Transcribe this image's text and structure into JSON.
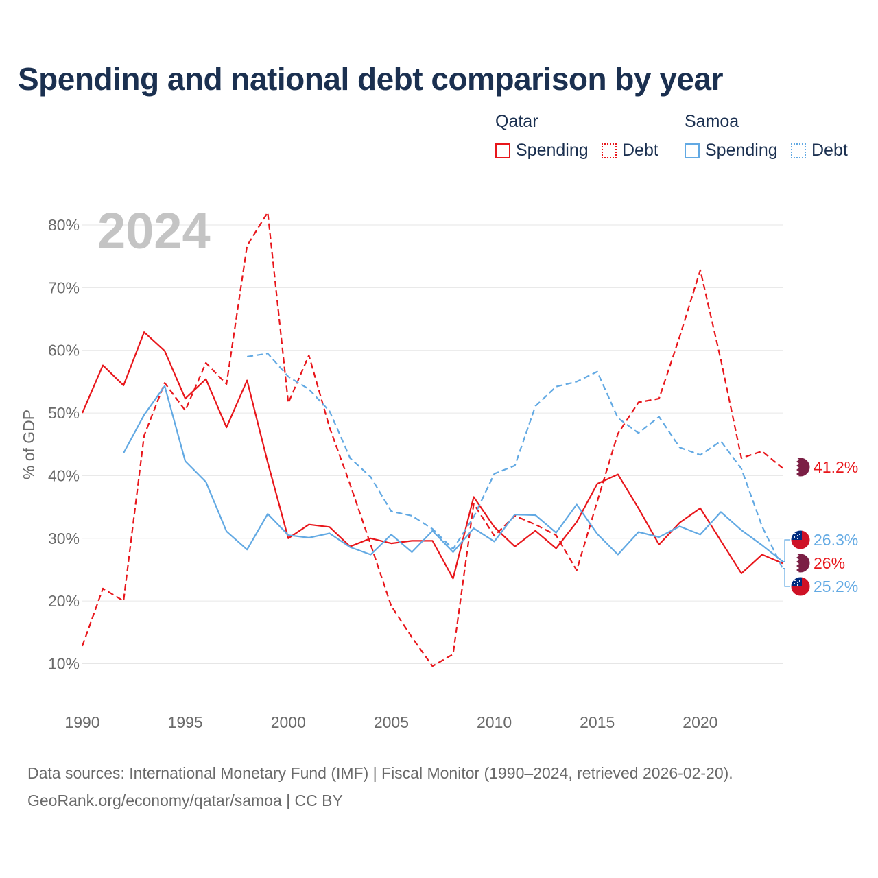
{
  "title": "Spending and national debt comparison by year",
  "legend": {
    "groups": [
      {
        "country": "Qatar",
        "color": "#e8161b",
        "items": [
          "Spending",
          "Debt"
        ]
      },
      {
        "country": "Samoa",
        "color": "#62a9e3",
        "items": [
          "Spending",
          "Debt"
        ]
      }
    ]
  },
  "year_watermark": "2024",
  "source": {
    "line1": "Data sources: International Monetary Fund (IMF) | Fiscal Monitor (1990–2024, retrieved 2026-02-20).",
    "line2": "GeoRank.org/economy/qatar/samoa | CC BY"
  },
  "colors": {
    "qatar": "#e8161b",
    "samoa": "#62a9e3",
    "qatar_flag": "#7b1f45",
    "samoa_flag": "#ce1126",
    "samoa_canton": "#002b7f"
  },
  "chart_data": {
    "type": "line",
    "ylabel": "% of GDP",
    "xlim": [
      1990,
      2024
    ],
    "ylim": [
      5,
      85
    ],
    "x_ticks": [
      1990,
      1995,
      2000,
      2005,
      2010,
      2015,
      2020
    ],
    "y_ticks": [
      10,
      20,
      30,
      40,
      50,
      60,
      70,
      80
    ],
    "y_tick_labels": [
      "10%",
      "20%",
      "30%",
      "40%",
      "50%",
      "60%",
      "70%",
      "80%"
    ],
    "series": [
      {
        "name": "Qatar Spending",
        "country": "Qatar",
        "metric": "Spending",
        "style": "solid",
        "x": [
          1990,
          1991,
          1992,
          1993,
          1994,
          1995,
          1996,
          1997,
          1998,
          1999,
          2000,
          2001,
          2002,
          2003,
          2004,
          2005,
          2006,
          2007,
          2008,
          2009,
          2010,
          2011,
          2012,
          2013,
          2014,
          2015,
          2016,
          2017,
          2018,
          2019,
          2020,
          2021,
          2022,
          2023,
          2024
        ],
        "values": [
          50.0,
          57.6,
          54.4,
          62.9,
          59.9,
          52.3,
          55.4,
          47.7,
          55.2,
          42.1,
          30.0,
          32.2,
          31.8,
          28.7,
          30.0,
          29.2,
          29.6,
          29.6,
          23.6,
          36.6,
          31.8,
          28.7,
          31.2,
          28.4,
          32.6,
          38.7,
          40.2,
          34.8,
          29.0,
          32.5,
          34.8,
          29.6,
          24.4,
          27.4,
          26.0
        ],
        "end_label": "26%"
      },
      {
        "name": "Qatar Debt",
        "country": "Qatar",
        "metric": "Debt",
        "style": "dashed",
        "x": [
          1990,
          1991,
          1992,
          1993,
          1994,
          1995,
          1996,
          1997,
          1998,
          1999,
          2000,
          2001,
          2002,
          2003,
          2004,
          2005,
          2006,
          2007,
          2008,
          2009,
          2010,
          2011,
          2012,
          2013,
          2014,
          2015,
          2016,
          2017,
          2018,
          2019,
          2020,
          2021,
          2022,
          2023,
          2024
        ],
        "values": [
          12.8,
          22.0,
          20.0,
          46.4,
          54.8,
          50.4,
          58.0,
          54.6,
          76.7,
          82.0,
          51.6,
          59.2,
          47.7,
          38.6,
          29.0,
          19.2,
          14.2,
          9.6,
          11.5,
          35.5,
          30.4,
          33.6,
          32.2,
          30.5,
          24.9,
          35.9,
          46.7,
          51.7,
          52.3,
          62.2,
          72.8,
          58.5,
          42.8,
          43.9,
          41.2
        ],
        "end_label": "41.2%"
      },
      {
        "name": "Samoa Spending",
        "country": "Samoa",
        "metric": "Spending",
        "style": "solid",
        "x": [
          1992,
          1993,
          1994,
          1995,
          1996,
          1997,
          1998,
          1999,
          2000,
          2001,
          2002,
          2003,
          2004,
          2005,
          2006,
          2007,
          2008,
          2009,
          2010,
          2011,
          2012,
          2013,
          2014,
          2015,
          2016,
          2017,
          2018,
          2019,
          2020,
          2021,
          2022,
          2023,
          2024
        ],
        "values": [
          43.6,
          49.7,
          54.3,
          42.3,
          39.0,
          31.1,
          28.2,
          33.9,
          30.5,
          30.1,
          30.8,
          28.6,
          27.4,
          30.6,
          27.8,
          31.2,
          27.8,
          31.6,
          29.5,
          33.8,
          33.7,
          30.9,
          35.4,
          30.7,
          27.4,
          31.0,
          30.2,
          31.9,
          30.6,
          34.2,
          31.3,
          28.9,
          26.3
        ],
        "end_label": "26.3%"
      },
      {
        "name": "Samoa Debt",
        "country": "Samoa",
        "metric": "Debt",
        "style": "dashed",
        "x": [
          1998,
          1999,
          2000,
          2001,
          2002,
          2003,
          2004,
          2005,
          2006,
          2007,
          2008,
          2009,
          2010,
          2011,
          2012,
          2013,
          2014,
          2015,
          2016,
          2017,
          2018,
          2019,
          2020,
          2021,
          2022,
          2023,
          2024
        ],
        "values": [
          59.0,
          59.5,
          55.8,
          53.8,
          50.3,
          42.8,
          39.8,
          34.3,
          33.6,
          31.5,
          28.3,
          33.4,
          40.3,
          41.6,
          51.1,
          54.2,
          55.0,
          56.6,
          49.2,
          46.8,
          49.4,
          44.5,
          43.3,
          45.5,
          41.1,
          31.9,
          25.2
        ],
        "end_label": "25.2%"
      }
    ]
  }
}
